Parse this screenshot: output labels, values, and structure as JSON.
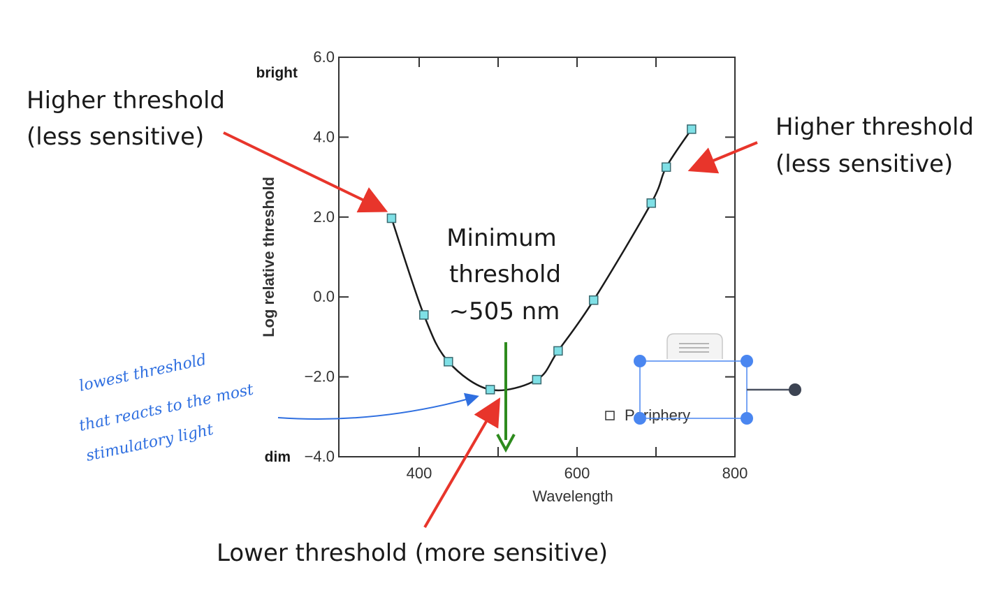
{
  "chart_data": {
    "type": "line",
    "title": "",
    "xlabel": "Wavelength",
    "ylabel": "Log relative threshold",
    "xlim": [
      300,
      800
    ],
    "ylim": [
      -4,
      6
    ],
    "x_ticks": [
      400,
      600,
      800
    ],
    "y_ticks": [
      -4,
      -2,
      0,
      2,
      4,
      6
    ],
    "y_tick_labels": [
      "−4.0",
      "−2.0",
      "0.0",
      "2.0",
      "4.0",
      "6.0"
    ],
    "x_tick_labels": [
      "400",
      "600",
      "800"
    ],
    "grid": false,
    "series": [
      {
        "name": "Periphery",
        "marker": "square",
        "x": [
          365,
          406,
          437,
          490,
          549,
          576,
          621,
          694,
          713,
          745
        ],
        "y": [
          1.97,
          -0.45,
          -1.62,
          -2.32,
          -2.07,
          -1.35,
          -0.08,
          2.35,
          3.25,
          4.2
        ]
      }
    ],
    "legend": {
      "label": "Periphery",
      "position": "bottom-right"
    },
    "y_extreme_labels": {
      "top": "bright",
      "bottom": "dim"
    },
    "annotations": {
      "left_callout": [
        "Higher threshold",
        "(less sensitive)"
      ],
      "right_callout": [
        "Higher threshold",
        "(less sensitive)"
      ],
      "minimum_callout": [
        "Minimum",
        "threshold",
        "~505 nm"
      ],
      "bottom_callout": "Lower threshold (more sensitive)",
      "handwritten_note": [
        "lowest threshold",
        "that reacts to the most",
        "stimulatory light"
      ]
    }
  },
  "colors": {
    "curve": "#1a1a1a",
    "marker_fill": "#7fe0e6",
    "marker_stroke": "#3a6a70",
    "red_arrow": "#e8352b",
    "green_arrow": "#2e8b1e",
    "blue_ink": "#2f6fe0",
    "selection": "#4a86f0",
    "axis": "#333333"
  }
}
